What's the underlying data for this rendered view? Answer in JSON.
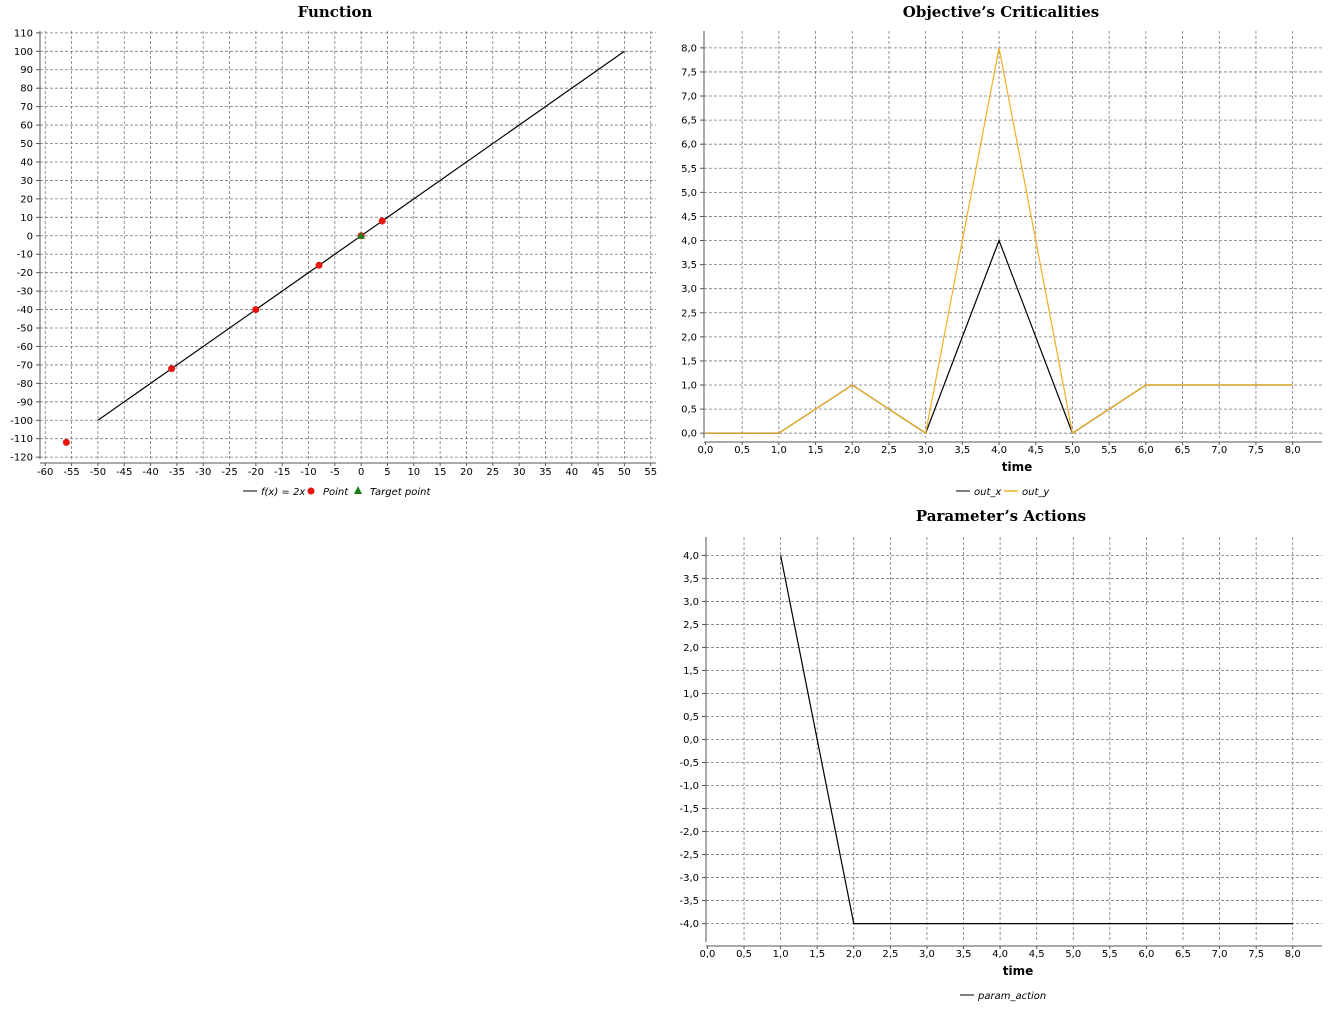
{
  "chart_data": [
    {
      "id": "function",
      "type": "scatter",
      "title": "Function",
      "xlabel": "",
      "ylabel": "",
      "xlim": [
        -61,
        56
      ],
      "ylim": [
        -121,
        111
      ],
      "xticks": [
        -60,
        -55,
        -50,
        -45,
        -40,
        -35,
        -30,
        -25,
        -20,
        -15,
        -10,
        -5,
        0,
        5,
        10,
        15,
        20,
        25,
        30,
        35,
        40,
        45,
        50,
        55
      ],
      "xtick_labels": [
        "-60",
        "-55",
        "-50",
        "-45",
        "-40",
        "-35",
        "-30",
        "-25",
        "-20",
        "-15",
        "-10",
        "-5",
        "0",
        "5",
        "10",
        "15",
        "20",
        "25",
        "30",
        "35",
        "40",
        "45",
        "50",
        "55"
      ],
      "yticks": [
        -120,
        -110,
        -100,
        -90,
        -80,
        -70,
        -60,
        -50,
        -40,
        -30,
        -20,
        -10,
        0,
        10,
        20,
        30,
        40,
        50,
        60,
        70,
        80,
        90,
        100,
        110
      ],
      "ytick_labels": [
        "-120",
        "-110",
        "-100",
        "-90",
        "-80",
        "-70",
        "-60",
        "-50",
        "-40",
        "-30",
        "-20",
        "-10",
        "0",
        "10",
        "20",
        "30",
        "40",
        "50",
        "60",
        "70",
        "80",
        "90",
        "100",
        "110"
      ],
      "grid": true,
      "legend_placement": "bottom",
      "series": [
        {
          "name": "f(x) = 2x",
          "kind": "line",
          "color": "#000000",
          "x": [
            -50,
            50
          ],
          "y": [
            -100,
            100
          ]
        },
        {
          "name": "Point",
          "kind": "point",
          "color": "#e8150f",
          "x": [
            -56,
            -36,
            -20,
            -8,
            0,
            4
          ],
          "y": [
            -112,
            -72,
            -40,
            -16,
            0,
            8
          ]
        },
        {
          "name": "Target point",
          "kind": "triangle",
          "color": "#1a7f1a",
          "x": [
            0
          ],
          "y": [
            0
          ]
        }
      ]
    },
    {
      "id": "criticalities",
      "type": "line",
      "title": "Objective’s Criticalities",
      "xlabel": "time",
      "ylabel": "",
      "xlim": [
        -0.02,
        8.4
      ],
      "ylim": [
        -0.1,
        8.35
      ],
      "xticks": [
        0,
        0.5,
        1,
        1.5,
        2,
        2.5,
        3,
        3.5,
        4,
        4.5,
        5,
        5.5,
        6,
        6.5,
        7,
        7.5,
        8
      ],
      "xtick_labels": [
        "0,0",
        "0,5",
        "1,0",
        "1,5",
        "2,0",
        "2,5",
        "3,0",
        "3,5",
        "4,0",
        "4,5",
        "5,0",
        "5,5",
        "6,0",
        "6,5",
        "7,0",
        "7,5",
        "8,0"
      ],
      "yticks": [
        0,
        0.5,
        1,
        1.5,
        2,
        2.5,
        3,
        3.5,
        4,
        4.5,
        5,
        5.5,
        6,
        6.5,
        7,
        7.5,
        8
      ],
      "ytick_labels": [
        "0,0",
        "0,5",
        "1,0",
        "1,5",
        "2,0",
        "2,5",
        "3,0",
        "3,5",
        "4,0",
        "4,5",
        "5,0",
        "5,5",
        "6,0",
        "6,5",
        "7,0",
        "7,5",
        "8,0"
      ],
      "grid": true,
      "legend_placement": "bottom",
      "series": [
        {
          "name": "out_x",
          "kind": "line",
          "color": "#000000",
          "x": [
            0,
            1,
            2,
            3,
            4,
            5,
            6,
            7,
            8
          ],
          "y": [
            0,
            0,
            1,
            0,
            4,
            0,
            1,
            1,
            1
          ]
        },
        {
          "name": "out_y",
          "kind": "line",
          "color": "#f0b020",
          "x": [
            0,
            1,
            2,
            3,
            4,
            5,
            6,
            7,
            8
          ],
          "y": [
            0,
            0,
            1,
            0,
            8,
            0,
            1,
            1,
            1
          ]
        }
      ]
    },
    {
      "id": "actions",
      "type": "line",
      "title": "Parameter’s Actions",
      "xlabel": "time",
      "ylabel": "",
      "xlim": [
        -0.02,
        8.4
      ],
      "ylim": [
        -4.4,
        4.4
      ],
      "xticks": [
        0,
        0.5,
        1,
        1.5,
        2,
        2.5,
        3,
        3.5,
        4,
        4.5,
        5,
        5.5,
        6,
        6.5,
        7,
        7.5,
        8
      ],
      "xtick_labels": [
        "0,0",
        "0,5",
        "1,0",
        "1,5",
        "2,0",
        "2,5",
        "3,0",
        "3,5",
        "4,0",
        "4,5",
        "5,0",
        "5,5",
        "6,0",
        "6,5",
        "7,0",
        "7,5",
        "8,0"
      ],
      "yticks": [
        -4,
        -3.5,
        -3,
        -2.5,
        -2,
        -1.5,
        -1,
        -0.5,
        0,
        0.5,
        1,
        1.5,
        2,
        2.5,
        3,
        3.5,
        4
      ],
      "ytick_labels": [
        "-4,0",
        "-3,5",
        "-3,0",
        "-2,5",
        "-2,0",
        "-1,5",
        "-1,0",
        "-0,5",
        "0,0",
        "0,5",
        "1,0",
        "1,5",
        "2,0",
        "2,5",
        "3,0",
        "3,5",
        "4,0"
      ],
      "grid": true,
      "legend_placement": "bottom",
      "series": [
        {
          "name": "param_action",
          "kind": "line",
          "color": "#000000",
          "x": [
            1,
            2,
            3,
            4,
            5,
            6,
            7,
            8
          ],
          "y": [
            4,
            -4,
            -4,
            -4,
            -4,
            -4,
            -4,
            -4
          ]
        }
      ]
    }
  ]
}
